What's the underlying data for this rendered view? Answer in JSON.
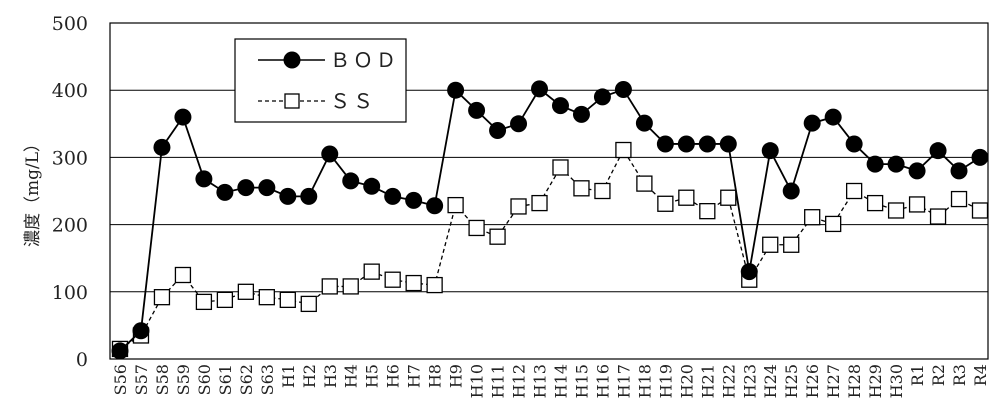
{
  "chart_data": {
    "type": "line",
    "ylabel": "濃度（mg/L）",
    "ylim": [
      0,
      500
    ],
    "yticks": [
      0,
      100,
      200,
      300,
      400,
      500
    ],
    "grid": true,
    "legend_position": "top-left",
    "categories": [
      "S56",
      "S57",
      "S58",
      "S59",
      "S60",
      "S61",
      "S62",
      "S63",
      "H1",
      "H2",
      "H3",
      "H4",
      "H5",
      "H6",
      "H7",
      "H8",
      "H9",
      "H10",
      "H11",
      "H12",
      "H13",
      "H14",
      "H15",
      "H16",
      "H17",
      "H18",
      "H19",
      "H20",
      "H21",
      "H22",
      "H23",
      "H24",
      "H25",
      "H26",
      "H27",
      "H28",
      "H29",
      "H30",
      "R1",
      "R2",
      "R3",
      "R4"
    ],
    "series": [
      {
        "name": "ＢＯＤ",
        "marker": "filled-circle",
        "line_style": "solid",
        "color": "#000000",
        "values": [
          12,
          42,
          315,
          360,
          268,
          248,
          255,
          255,
          242,
          242,
          305,
          265,
          257,
          242,
          236,
          228,
          400,
          370,
          340,
          350,
          402,
          377,
          364,
          390,
          401,
          351,
          320,
          320,
          320,
          320,
          130,
          310,
          250,
          351,
          360,
          320,
          290,
          290,
          280,
          310,
          280,
          300
        ]
      },
      {
        "name": "ＳＳ",
        "marker": "open-square",
        "line_style": "dashed",
        "color": "#000000",
        "values": [
          15,
          35,
          92,
          125,
          85,
          88,
          100,
          92,
          88,
          82,
          108,
          108,
          130,
          118,
          113,
          110,
          229,
          195,
          182,
          227,
          232,
          285,
          254,
          250,
          311,
          261,
          231,
          240,
          220,
          240,
          118,
          170,
          170,
          211,
          201,
          250,
          232,
          221,
          230,
          212,
          238,
          221
        ]
      }
    ]
  }
}
